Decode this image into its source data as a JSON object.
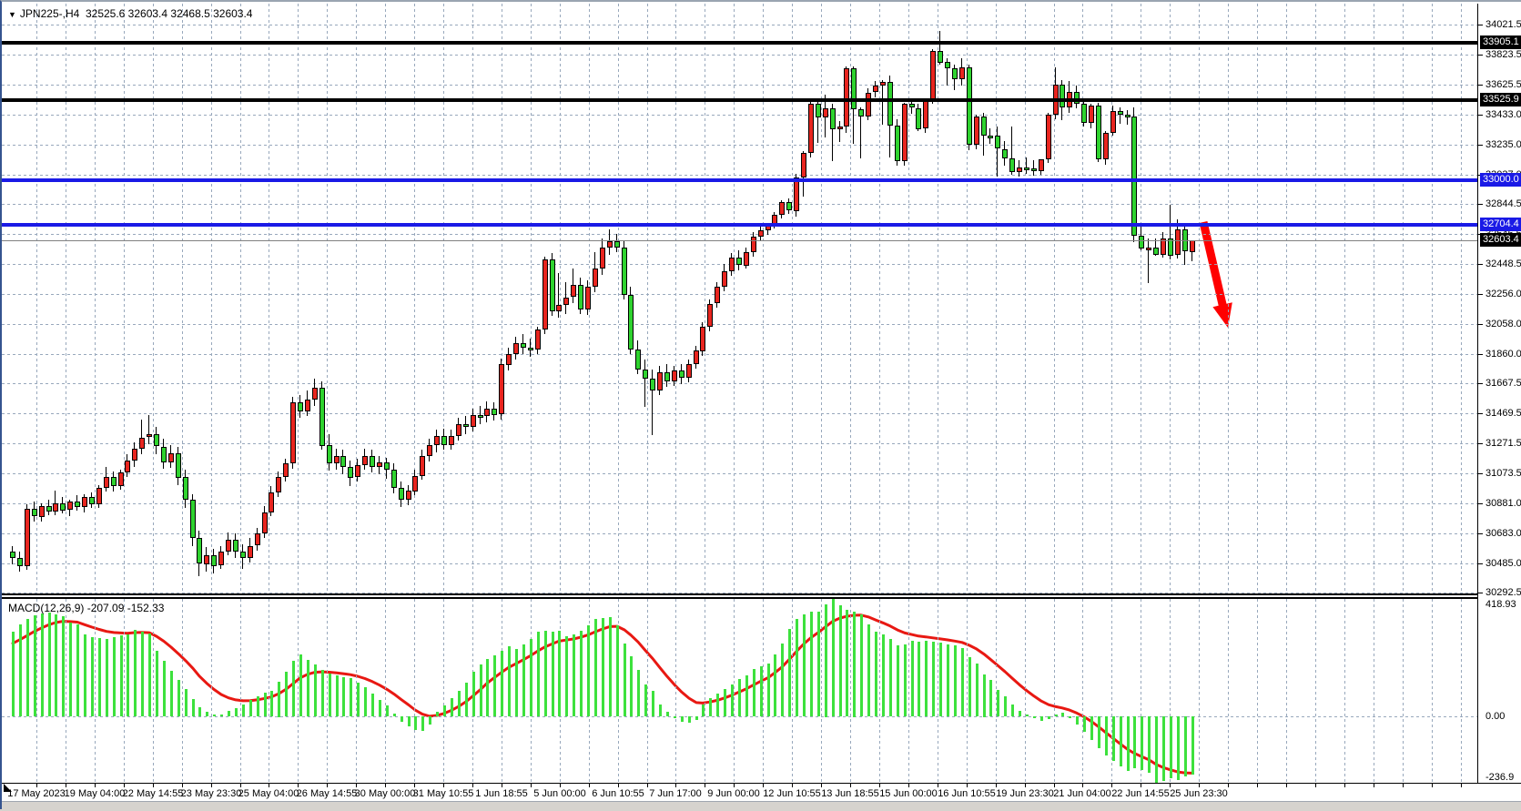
{
  "window": {
    "symbol_period": "JPN225-,H4",
    "ohlc_readout": "32525.6 32603.4 32468.5 32603.4",
    "dropdown_icon": "▼"
  },
  "colors": {
    "up_candle": "#e8251f",
    "down_candle": "#2fd32f",
    "wick": "#000000",
    "grid": "#98a8bc",
    "blue_line": "#1a1ae6",
    "black_line": "#000000",
    "macd_bar": "#3de13d",
    "macd_signal": "#e81812",
    "arrow": "#ff0000",
    "background": "#ffffff",
    "chrome": "#d6d3ce",
    "current_price_line": "#808080"
  },
  "horizontal_lines": [
    {
      "price": 33905.1,
      "label": "33905.1",
      "color": "black"
    },
    {
      "price": 33525.9,
      "label": "33525.9",
      "color": "black"
    },
    {
      "price": 33000.0,
      "label": "33000.0",
      "color": "blue"
    },
    {
      "price": 32704.4,
      "label": "32704.4",
      "color": "blue"
    }
  ],
  "current_price": {
    "value": 32603.4,
    "label": "32603.4"
  },
  "macd_panel": {
    "label": "MACD(12,26,9) -207.09 -152.33",
    "indicator_name": "MACD",
    "params": "12,26,9",
    "macd_value": -207.09,
    "signal_value": -152.33,
    "axis_ticks": [
      {
        "value": 418.93,
        "label": "418.93"
      },
      {
        "value": 0,
        "label": "0.00"
      },
      {
        "value": -236.9,
        "label": "-236.9"
      }
    ],
    "ylim": [
      -236.9,
      418.93
    ]
  },
  "annotations": {
    "arrow": {
      "shape": "arrow-down-right",
      "color": "#ff0000",
      "tail": [
        1320,
        240
      ],
      "tip": [
        1347,
        356
      ],
      "shaft_width": 9,
      "head_width": 22,
      "head_length": 26
    }
  },
  "chart_data": {
    "type": "candlestick",
    "title": "JPN225-,H4",
    "symbol": "JPN225-",
    "timeframe": "H4",
    "grid": "dashed",
    "price_ticks": [
      34021.5,
      33823.5,
      33625.5,
      33433.0,
      33235.0,
      33037.0,
      32844.5,
      32646.5,
      32448.5,
      32256.0,
      32058.0,
      31860.0,
      31667.5,
      31469.5,
      31271.5,
      31073.5,
      30881.0,
      30683.0,
      30485.0,
      30292.5
    ],
    "x_labels": [
      "17 May 2023",
      "19 May 04:00",
      "22 May 14:55",
      "23 May 23:30",
      "25 May 04:00",
      "26 May 14:55",
      "30 May 00:00",
      "31 May 10:55",
      "1 Jun 18:55",
      "5 Jun 00:00",
      "6 Jun 10:55",
      "7 Jun 17:00",
      "9 Jun 00:00",
      "12 Jun 10:55",
      "13 Jun 18:55",
      "15 Jun 00:00",
      "16 Jun 10:55",
      "19 Jun 23:30",
      "21 Jun 04:00",
      "22 Jun 14:55",
      "25 Jun 23:30"
    ],
    "ohlc": [
      [
        30560,
        30600,
        30480,
        30520
      ],
      [
        30520,
        30560,
        30430,
        30465
      ],
      [
        30465,
        30870,
        30440,
        30840
      ],
      [
        30840,
        30890,
        30760,
        30790
      ],
      [
        30790,
        30880,
        30760,
        30860
      ],
      [
        30860,
        30900,
        30800,
        30825
      ],
      [
        30825,
        30960,
        30800,
        30880
      ],
      [
        30880,
        30920,
        30810,
        30835
      ],
      [
        30835,
        30905,
        30800,
        30890
      ],
      [
        30890,
        30930,
        30830,
        30855
      ],
      [
        30855,
        30940,
        30820,
        30920
      ],
      [
        30920,
        30950,
        30850,
        30875
      ],
      [
        30875,
        31000,
        30850,
        30980
      ],
      [
        30980,
        31120,
        30960,
        31050
      ],
      [
        31050,
        31090,
        30960,
        30990
      ],
      [
        30990,
        31100,
        30970,
        31080
      ],
      [
        31080,
        31200,
        31050,
        31160
      ],
      [
        31160,
        31280,
        31120,
        31240
      ],
      [
        31240,
        31430,
        31200,
        31310
      ],
      [
        31310,
        31460,
        31270,
        31330
      ],
      [
        31330,
        31380,
        31200,
        31250
      ],
      [
        31250,
        31300,
        31100,
        31150
      ],
      [
        31150,
        31260,
        31110,
        31210
      ],
      [
        31210,
        31250,
        31000,
        31050
      ],
      [
        31050,
        31100,
        30850,
        30900
      ],
      [
        30900,
        30940,
        30600,
        30650
      ],
      [
        30650,
        30700,
        30400,
        30480
      ],
      [
        30480,
        30590,
        30430,
        30540
      ],
      [
        30540,
        30580,
        30420,
        30470
      ],
      [
        30470,
        30600,
        30450,
        30560
      ],
      [
        30560,
        30690,
        30540,
        30640
      ],
      [
        30640,
        30680,
        30520,
        30560
      ],
      [
        30560,
        30610,
        30450,
        30520
      ],
      [
        30520,
        30650,
        30490,
        30600
      ],
      [
        30600,
        30720,
        30570,
        30680
      ],
      [
        30680,
        30860,
        30650,
        30820
      ],
      [
        30820,
        30990,
        30790,
        30950
      ],
      [
        30950,
        31090,
        30920,
        31050
      ],
      [
        31050,
        31170,
        31020,
        31140
      ],
      [
        31140,
        31580,
        31110,
        31540
      ],
      [
        31540,
        31590,
        31440,
        31480
      ],
      [
        31480,
        31620,
        31450,
        31560
      ],
      [
        31560,
        31700,
        31520,
        31640
      ],
      [
        31640,
        31680,
        31230,
        31260
      ],
      [
        31260,
        31330,
        31090,
        31140
      ],
      [
        31140,
        31240,
        31100,
        31190
      ],
      [
        31190,
        31230,
        31070,
        31120
      ],
      [
        31120,
        31160,
        30990,
        31050
      ],
      [
        31050,
        31170,
        31020,
        31130
      ],
      [
        31130,
        31240,
        31100,
        31190
      ],
      [
        31190,
        31230,
        31080,
        31120
      ],
      [
        31120,
        31190,
        31070,
        31150
      ],
      [
        31150,
        31180,
        31040,
        31100
      ],
      [
        31100,
        31140,
        30940,
        30980
      ],
      [
        30980,
        31020,
        30850,
        30900
      ],
      [
        30900,
        31000,
        30870,
        30960
      ],
      [
        30960,
        31100,
        30930,
        31060
      ],
      [
        31060,
        31230,
        31030,
        31190
      ],
      [
        31190,
        31300,
        31150,
        31260
      ],
      [
        31260,
        31360,
        31210,
        31320
      ],
      [
        31320,
        31370,
        31230,
        31260
      ],
      [
        31260,
        31360,
        31230,
        31320
      ],
      [
        31320,
        31440,
        31290,
        31400
      ],
      [
        31400,
        31450,
        31330,
        31380
      ],
      [
        31380,
        31500,
        31350,
        31460
      ],
      [
        31460,
        31520,
        31400,
        31450
      ],
      [
        31450,
        31550,
        31410,
        31500
      ],
      [
        31500,
        31540,
        31420,
        31460
      ],
      [
        31460,
        31830,
        31430,
        31790
      ],
      [
        31790,
        31900,
        31750,
        31860
      ],
      [
        31860,
        31970,
        31820,
        31930
      ],
      [
        31930,
        31990,
        31860,
        31900
      ],
      [
        31900,
        31960,
        31840,
        31890
      ],
      [
        31890,
        32040,
        31860,
        32020
      ],
      [
        32020,
        32500,
        31990,
        32480
      ],
      [
        32480,
        32520,
        32110,
        32140
      ],
      [
        32140,
        32390,
        32100,
        32180
      ],
      [
        32180,
        32330,
        32120,
        32230
      ],
      [
        32230,
        32420,
        32190,
        32310
      ],
      [
        32310,
        32360,
        32120,
        32150
      ],
      [
        32150,
        32340,
        32110,
        32300
      ],
      [
        32300,
        32530,
        32270,
        32420
      ],
      [
        32420,
        32620,
        32380,
        32560
      ],
      [
        32560,
        32680,
        32510,
        32600
      ],
      [
        32600,
        32650,
        32530,
        32560
      ],
      [
        32560,
        32600,
        32220,
        32250
      ],
      [
        32250,
        32300,
        31860,
        31890
      ],
      [
        31890,
        31950,
        31730,
        31760
      ],
      [
        31760,
        31820,
        31510,
        31700
      ],
      [
        31700,
        31760,
        31330,
        31620
      ],
      [
        31620,
        31780,
        31590,
        31740
      ],
      [
        31740,
        31790,
        31640,
        31680
      ],
      [
        31680,
        31780,
        31650,
        31750
      ],
      [
        31750,
        31790,
        31660,
        31700
      ],
      [
        31700,
        31820,
        31670,
        31790
      ],
      [
        31790,
        31910,
        31760,
        31880
      ],
      [
        31880,
        32070,
        31850,
        32040
      ],
      [
        32040,
        32220,
        32010,
        32190
      ],
      [
        32190,
        32330,
        32160,
        32300
      ],
      [
        32300,
        32450,
        32270,
        32400
      ],
      [
        32400,
        32520,
        32370,
        32490
      ],
      [
        32490,
        32540,
        32410,
        32440
      ],
      [
        32440,
        32560,
        32420,
        32530
      ],
      [
        32530,
        32660,
        32500,
        32630
      ],
      [
        32630,
        32700,
        32600,
        32670
      ],
      [
        32670,
        32720,
        32640,
        32705
      ],
      [
        32705,
        32790,
        32680,
        32770
      ],
      [
        32770,
        32870,
        32750,
        32855
      ],
      [
        32855,
        32880,
        32780,
        32800
      ],
      [
        32800,
        33040,
        32760,
        33020
      ],
      [
        33020,
        33190,
        32890,
        33180
      ],
      [
        33180,
        33530,
        33150,
        33500
      ],
      [
        33500,
        33520,
        33245,
        33410
      ],
      [
        33410,
        33560,
        33280,
        33470
      ],
      [
        33470,
        33500,
        33125,
        33330
      ],
      [
        33330,
        33390,
        33250,
        33350
      ],
      [
        33350,
        33747,
        33310,
        33735
      ],
      [
        33735,
        33750,
        33245,
        33465
      ],
      [
        33465,
        33480,
        33143,
        33420
      ],
      [
        33420,
        33602,
        33390,
        33576
      ],
      [
        33576,
        33650,
        33540,
        33620
      ],
      [
        33620,
        33660,
        33370,
        33645
      ],
      [
        33645,
        33690,
        33150,
        33360
      ],
      [
        33360,
        33400,
        33095,
        33125
      ],
      [
        33125,
        33510,
        33100,
        33500
      ],
      [
        33500,
        33540,
        33440,
        33475
      ],
      [
        33475,
        33500,
        33320,
        33340
      ],
      [
        33340,
        33540,
        33310,
        33530
      ],
      [
        33530,
        33860,
        33500,
        33850
      ],
      [
        33850,
        33980,
        33760,
        33775
      ],
      [
        33775,
        33800,
        33620,
        33735
      ],
      [
        33735,
        33760,
        33590,
        33665
      ],
      [
        33665,
        33800,
        33620,
        33740
      ],
      [
        33740,
        33760,
        33200,
        33235
      ],
      [
        33235,
        33430,
        33200,
        33420
      ],
      [
        33420,
        33440,
        33160,
        33295
      ],
      [
        33295,
        33340,
        33240,
        33290
      ],
      [
        33290,
        33350,
        33020,
        33205
      ],
      [
        33205,
        33260,
        33100,
        33145
      ],
      [
        33145,
        33355,
        33040,
        33055
      ],
      [
        33055,
        33130,
        33020,
        33085
      ],
      [
        33085,
        33150,
        33040,
        33075
      ],
      [
        33075,
        33130,
        33030,
        33060
      ],
      [
        33060,
        33140,
        33040,
        33135
      ],
      [
        33135,
        33440,
        33110,
        33430
      ],
      [
        33430,
        33740,
        33400,
        33630
      ],
      [
        33630,
        33660,
        33400,
        33480
      ],
      [
        33480,
        33650,
        33440,
        33580
      ],
      [
        33580,
        33620,
        33470,
        33500
      ],
      [
        33500,
        33520,
        33350,
        33375
      ],
      [
        33375,
        33500,
        33340,
        33490
      ],
      [
        33490,
        33510,
        33120,
        33135
      ],
      [
        33135,
        33320,
        33100,
        33310
      ],
      [
        33310,
        33490,
        33290,
        33455
      ],
      [
        33455,
        33480,
        33370,
        33430
      ],
      [
        33430,
        33460,
        33365,
        33420
      ],
      [
        33420,
        33476,
        32590,
        32635
      ],
      [
        32635,
        32700,
        32540,
        32550
      ],
      [
        32550,
        32620,
        32325,
        32560
      ],
      [
        32560,
        32615,
        32500,
        32510
      ],
      [
        32510,
        32660,
        32490,
        32620
      ],
      [
        32620,
        32840,
        32480,
        32505
      ],
      [
        32505,
        32745,
        32490,
        32675
      ],
      [
        32675,
        32700,
        32445,
        32530
      ],
      [
        32525.6,
        32603.4,
        32468.5,
        32603.4
      ]
    ],
    "macd_histogram": [
      303,
      327,
      347,
      362,
      368,
      370,
      365,
      357,
      335,
      327,
      292,
      282,
      278,
      275,
      284,
      290,
      293,
      308,
      302,
      295,
      233,
      198,
      163,
      130,
      98,
      63,
      33,
      16,
      8,
      5,
      18,
      30,
      43,
      58,
      72,
      83,
      90,
      125,
      160,
      198,
      222,
      200,
      186,
      165,
      152,
      146,
      141,
      135,
      119,
      103,
      81,
      60,
      38,
      10,
      -20,
      -35,
      -48,
      -52,
      -30,
      15,
      40,
      66,
      91,
      120,
      160,
      185,
      205,
      217,
      233,
      249,
      240,
      258,
      275,
      301,
      306,
      303,
      306,
      287,
      292,
      306,
      324,
      346,
      352,
      355,
      324,
      259,
      215,
      167,
      115,
      91,
      41,
      17,
      -5,
      -18,
      -22,
      -13,
      41,
      66,
      81,
      99,
      115,
      132,
      146,
      168,
      179,
      187,
      222,
      259,
      311,
      347,
      364,
      372,
      372,
      401,
      419,
      397,
      380,
      375,
      364,
      329,
      301,
      292,
      277,
      252,
      255,
      268,
      266,
      271,
      266,
      262,
      258,
      252,
      244,
      212,
      187,
      151,
      129,
      95,
      71,
      42,
      19,
      8,
      -6,
      -15,
      -10,
      5,
      12,
      -8,
      -30,
      -55,
      -85,
      -115,
      -140,
      -160,
      -180,
      -195,
      -185,
      -190,
      -200,
      -237,
      -230,
      -222,
      -228,
      -215,
      -207
    ]
  }
}
